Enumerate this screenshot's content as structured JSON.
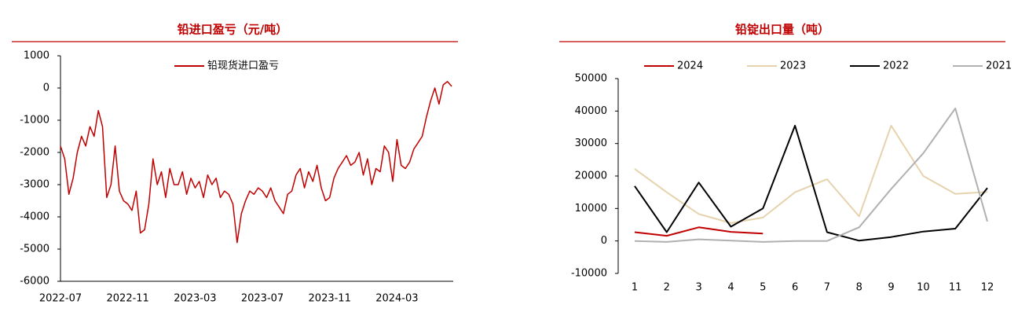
{
  "chart_data": [
    {
      "type": "line",
      "title": "铅进口盈亏（元/吨）",
      "categories": [
        "2022-07",
        null,
        null,
        null,
        null,
        null,
        null,
        null,
        null,
        null,
        null,
        null,
        null,
        null,
        null,
        null,
        "2022-11",
        null,
        null,
        null,
        null,
        null,
        null,
        null,
        null,
        null,
        null,
        null,
        null,
        null,
        null,
        null,
        "2023-03",
        null,
        null,
        null,
        null,
        null,
        null,
        null,
        null,
        null,
        null,
        null,
        null,
        null,
        null,
        null,
        "2023-07",
        null,
        null,
        null,
        null,
        null,
        null,
        null,
        null,
        null,
        null,
        null,
        null,
        null,
        null,
        null,
        "2023-11",
        null,
        null,
        null,
        null,
        null,
        null,
        null,
        null,
        null,
        null,
        null,
        null,
        null,
        null,
        null,
        "2024-03",
        null,
        null,
        null,
        null,
        null,
        null,
        null,
        null,
        null,
        null,
        null,
        null,
        null
      ],
      "series": [
        {
          "name": "铅现货进口盈亏",
          "color": "#c00000",
          "values": [
            -1800,
            -2200,
            -3300,
            -2800,
            -2000,
            -1500,
            -1800,
            -1200,
            -1500,
            -700,
            -1200,
            -3400,
            -3000,
            -1800,
            -3200,
            -3500,
            -3600,
            -3800,
            -3200,
            -4500,
            -4400,
            -3600,
            -2200,
            -3000,
            -2600,
            -3400,
            -2500,
            -3000,
            -3000,
            -2600,
            -3300,
            -2800,
            -3100,
            -2900,
            -3400,
            -2700,
            -3000,
            -2800,
            -3400,
            -3200,
            -3300,
            -3600,
            -4800,
            -3900,
            -3500,
            -3200,
            -3300,
            -3100,
            -3200,
            -3400,
            -3100,
            -3500,
            -3700,
            -3900,
            -3300,
            -3200,
            -2700,
            -2500,
            -3100,
            -2600,
            -2900,
            -2400,
            -3100,
            -3500,
            -3400,
            -2800,
            -2500,
            -2300,
            -2100,
            -2400,
            -2300,
            -2000,
            -2700,
            -2200,
            -3000,
            -2500,
            -2600,
            -1800,
            -2000,
            -2900,
            -1600,
            -2400,
            -2500,
            -2300,
            -1900,
            -1700,
            -1500,
            -900,
            -400,
            0,
            -500,
            100,
            200,
            50
          ]
        }
      ],
      "ylim": [
        -6000,
        1000
      ],
      "yticks": [
        -6000,
        -5000,
        -4000,
        -3000,
        -2000,
        -1000,
        0,
        1000
      ]
    },
    {
      "type": "line",
      "title": "铅锭出口量（吨）",
      "categories": [
        "1",
        "2",
        "3",
        "4",
        "5",
        "6",
        "7",
        "8",
        "9",
        "10",
        "11",
        "12"
      ],
      "series": [
        {
          "name": "2024",
          "color": "#c00000",
          "values": [
            2700,
            1600,
            4200,
            2800,
            2300,
            null,
            null,
            null,
            null,
            null,
            null,
            null
          ]
        },
        {
          "name": "2023",
          "color": "#e6d3ae",
          "values": [
            22200,
            15000,
            8300,
            5500,
            7200,
            15000,
            19000,
            7600,
            35500,
            20000,
            14500,
            15100
          ]
        },
        {
          "name": "2022",
          "color": "#000000",
          "values": [
            16900,
            2700,
            18000,
            4400,
            10000,
            35500,
            2700,
            100,
            1200,
            2900,
            3800,
            16300
          ]
        },
        {
          "name": "2021",
          "color": "#b0b0b0",
          "values": [
            0,
            -300,
            500,
            100,
            -300,
            0,
            0,
            4200,
            16000,
            27000,
            40800,
            6000
          ]
        }
      ],
      "ylim": [
        -10000,
        50000
      ],
      "yticks": [
        -10000,
        0,
        10000,
        20000,
        30000,
        40000,
        50000
      ]
    }
  ]
}
